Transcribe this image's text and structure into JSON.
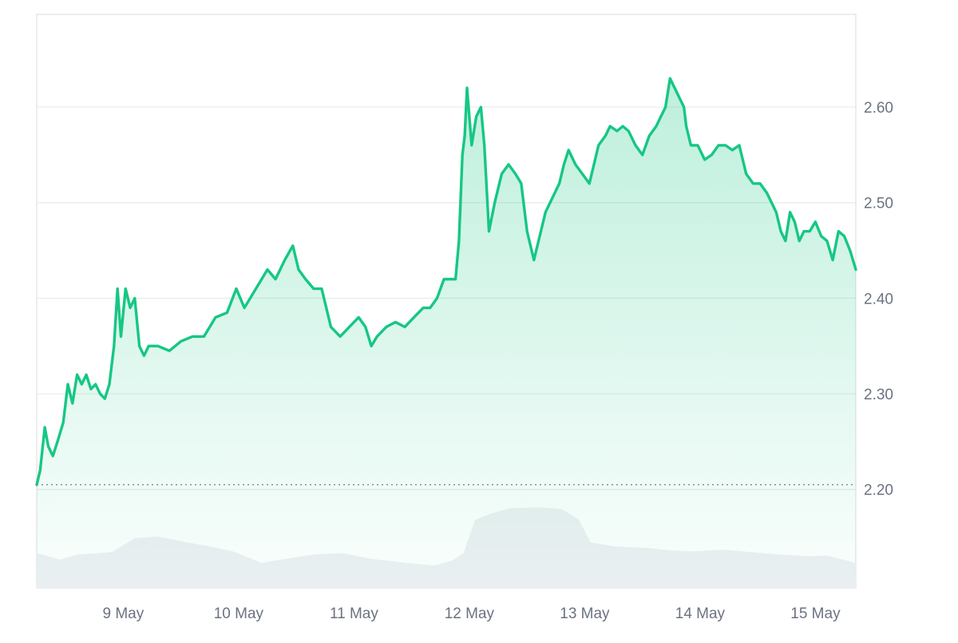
{
  "chart_data": {
    "type": "area",
    "title": "",
    "xlabel": "",
    "ylabel": "",
    "x_tick_labels": [
      "9 May",
      "10 May",
      "11 May",
      "12 May",
      "13 May",
      "14 May",
      "15 May"
    ],
    "x_range_days": [
      8.25,
      15.35
    ],
    "y_tick_labels": [
      "2.20",
      "2.30",
      "2.40",
      "2.50",
      "2.60"
    ],
    "y_ticks": [
      2.2,
      2.3,
      2.4,
      2.5,
      2.6
    ],
    "ylim": [
      2.097,
      2.697
    ],
    "grid": true,
    "legend": "none",
    "baseline_value": 2.205,
    "colors": {
      "line": "#16c784",
      "area_top": "#16c784",
      "volume": "#eef0f3",
      "grid": "#e8eaed",
      "baseline": "#8a8f98",
      "axis_text": "#6b7280"
    },
    "series": [
      {
        "values": [
          [
            8.25,
            2.205
          ],
          [
            8.28,
            2.22
          ],
          [
            8.32,
            2.265
          ],
          [
            8.35,
            2.245
          ],
          [
            8.39,
            2.235
          ],
          [
            8.43,
            2.25
          ],
          [
            8.48,
            2.27
          ],
          [
            8.52,
            2.31
          ],
          [
            8.56,
            2.29
          ],
          [
            8.6,
            2.32
          ],
          [
            8.64,
            2.31
          ],
          [
            8.68,
            2.32
          ],
          [
            8.72,
            2.305
          ],
          [
            8.76,
            2.31
          ],
          [
            8.8,
            2.3
          ],
          [
            8.84,
            2.295
          ],
          [
            8.88,
            2.31
          ],
          [
            8.92,
            2.35
          ],
          [
            8.95,
            2.41
          ],
          [
            8.98,
            2.36
          ],
          [
            9.02,
            2.41
          ],
          [
            9.06,
            2.39
          ],
          [
            9.1,
            2.4
          ],
          [
            9.14,
            2.35
          ],
          [
            9.18,
            2.34
          ],
          [
            9.22,
            2.35
          ],
          [
            9.3,
            2.35
          ],
          [
            9.4,
            2.345
          ],
          [
            9.5,
            2.355
          ],
          [
            9.6,
            2.36
          ],
          [
            9.7,
            2.36
          ],
          [
            9.8,
            2.38
          ],
          [
            9.9,
            2.385
          ],
          [
            9.98,
            2.41
          ],
          [
            10.05,
            2.39
          ],
          [
            10.15,
            2.41
          ],
          [
            10.25,
            2.43
          ],
          [
            10.32,
            2.42
          ],
          [
            10.4,
            2.44
          ],
          [
            10.47,
            2.455
          ],
          [
            10.52,
            2.43
          ],
          [
            10.58,
            2.42
          ],
          [
            10.65,
            2.41
          ],
          [
            10.72,
            2.41
          ],
          [
            10.8,
            2.37
          ],
          [
            10.88,
            2.36
          ],
          [
            10.96,
            2.37
          ],
          [
            11.04,
            2.38
          ],
          [
            11.1,
            2.37
          ],
          [
            11.15,
            2.35
          ],
          [
            11.2,
            2.36
          ],
          [
            11.28,
            2.37
          ],
          [
            11.36,
            2.375
          ],
          [
            11.44,
            2.37
          ],
          [
            11.52,
            2.38
          ],
          [
            11.6,
            2.39
          ],
          [
            11.66,
            2.39
          ],
          [
            11.72,
            2.4
          ],
          [
            11.78,
            2.42
          ],
          [
            11.84,
            2.42
          ],
          [
            11.88,
            2.42
          ],
          [
            11.91,
            2.46
          ],
          [
            11.94,
            2.55
          ],
          [
            11.96,
            2.57
          ],
          [
            11.98,
            2.62
          ],
          [
            12.02,
            2.56
          ],
          [
            12.06,
            2.59
          ],
          [
            12.1,
            2.6
          ],
          [
            12.13,
            2.56
          ],
          [
            12.17,
            2.47
          ],
          [
            12.22,
            2.5
          ],
          [
            12.28,
            2.53
          ],
          [
            12.34,
            2.54
          ],
          [
            12.4,
            2.53
          ],
          [
            12.45,
            2.52
          ],
          [
            12.5,
            2.47
          ],
          [
            12.56,
            2.44
          ],
          [
            12.62,
            2.47
          ],
          [
            12.66,
            2.49
          ],
          [
            12.72,
            2.505
          ],
          [
            12.78,
            2.52
          ],
          [
            12.82,
            2.54
          ],
          [
            12.86,
            2.555
          ],
          [
            12.92,
            2.54
          ],
          [
            12.98,
            2.53
          ],
          [
            13.04,
            2.52
          ],
          [
            13.08,
            2.54
          ],
          [
            13.12,
            2.56
          ],
          [
            13.18,
            2.57
          ],
          [
            13.22,
            2.58
          ],
          [
            13.28,
            2.575
          ],
          [
            13.33,
            2.58
          ],
          [
            13.38,
            2.575
          ],
          [
            13.44,
            2.56
          ],
          [
            13.5,
            2.55
          ],
          [
            13.56,
            2.57
          ],
          [
            13.62,
            2.58
          ],
          [
            13.66,
            2.59
          ],
          [
            13.7,
            2.6
          ],
          [
            13.74,
            2.63
          ],
          [
            13.78,
            2.62
          ],
          [
            13.82,
            2.61
          ],
          [
            13.86,
            2.6
          ],
          [
            13.88,
            2.58
          ],
          [
            13.92,
            2.56
          ],
          [
            13.98,
            2.56
          ],
          [
            14.04,
            2.545
          ],
          [
            14.1,
            2.55
          ],
          [
            14.16,
            2.56
          ],
          [
            14.22,
            2.56
          ],
          [
            14.28,
            2.555
          ],
          [
            14.34,
            2.56
          ],
          [
            14.4,
            2.53
          ],
          [
            14.46,
            2.52
          ],
          [
            14.52,
            2.52
          ],
          [
            14.58,
            2.51
          ],
          [
            14.62,
            2.5
          ],
          [
            14.66,
            2.49
          ],
          [
            14.7,
            2.47
          ],
          [
            14.74,
            2.46
          ],
          [
            14.78,
            2.49
          ],
          [
            14.82,
            2.48
          ],
          [
            14.86,
            2.46
          ],
          [
            14.9,
            2.47
          ],
          [
            14.95,
            2.47
          ],
          [
            15.0,
            2.48
          ],
          [
            15.05,
            2.465
          ],
          [
            15.1,
            2.46
          ],
          [
            15.15,
            2.44
          ],
          [
            15.2,
            2.47
          ],
          [
            15.25,
            2.465
          ],
          [
            15.3,
            2.45
          ],
          [
            15.35,
            2.43
          ]
        ]
      }
    ],
    "volume_relative": [
      [
        8.25,
        0.42
      ],
      [
        8.45,
        0.34
      ],
      [
        8.6,
        0.4
      ],
      [
        8.9,
        0.43
      ],
      [
        9.1,
        0.6
      ],
      [
        9.3,
        0.62
      ],
      [
        9.55,
        0.55
      ],
      [
        9.75,
        0.5
      ],
      [
        9.95,
        0.44
      ],
      [
        10.2,
        0.3
      ],
      [
        10.45,
        0.36
      ],
      [
        10.65,
        0.4
      ],
      [
        10.9,
        0.42
      ],
      [
        11.15,
        0.35
      ],
      [
        11.45,
        0.3
      ],
      [
        11.7,
        0.27
      ],
      [
        11.85,
        0.33
      ],
      [
        11.95,
        0.42
      ],
      [
        12.05,
        0.82
      ],
      [
        12.2,
        0.9
      ],
      [
        12.35,
        0.96
      ],
      [
        12.6,
        0.97
      ],
      [
        12.8,
        0.95
      ],
      [
        12.95,
        0.82
      ],
      [
        13.05,
        0.55
      ],
      [
        13.25,
        0.5
      ],
      [
        13.55,
        0.48
      ],
      [
        13.75,
        0.45
      ],
      [
        13.95,
        0.44
      ],
      [
        14.2,
        0.46
      ],
      [
        14.45,
        0.43
      ],
      [
        14.7,
        0.4
      ],
      [
        14.95,
        0.38
      ],
      [
        15.1,
        0.39
      ],
      [
        15.35,
        0.3
      ]
    ]
  }
}
